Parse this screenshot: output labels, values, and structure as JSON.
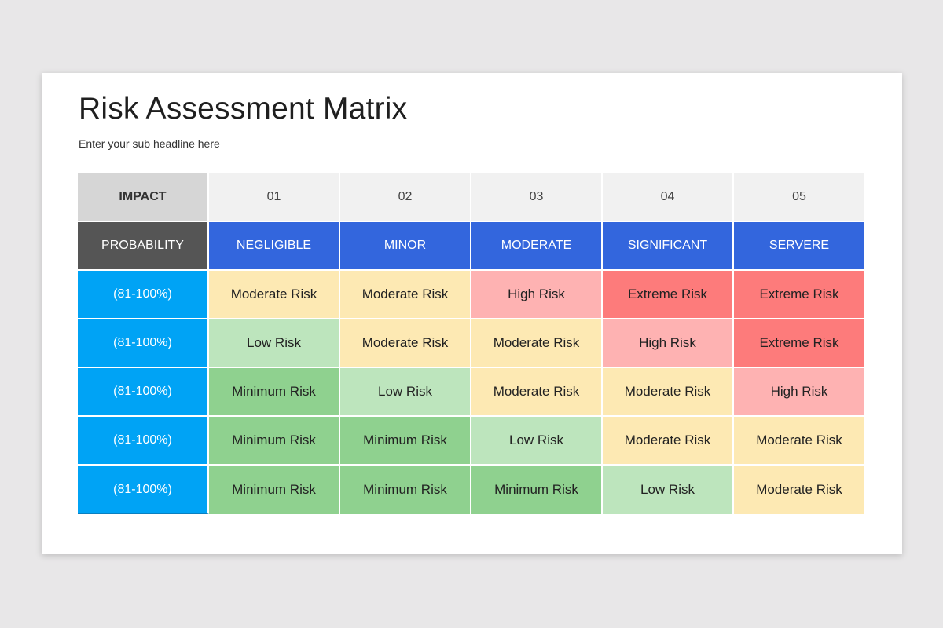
{
  "slide": {
    "title": "Risk Assessment Matrix",
    "subtitle": "Enter your sub headline here"
  },
  "matrix": {
    "impact_label": "IMPACT",
    "probability_label": "PROBABILITY",
    "levels": [
      "01",
      "02",
      "03",
      "04",
      "05"
    ],
    "impact_names": [
      "NEGLIGIBLE",
      "MINOR",
      "MODERATE",
      "SIGNIFICANT",
      "SERVERE"
    ],
    "colors": {
      "Minimum Risk": "#8fd18f",
      "Low Risk": "#bde5bd",
      "Moderate Risk": "#fde9b3",
      "High Risk": "#feb2b2",
      "Extreme Risk": "#fd7b7b"
    },
    "rows": [
      {
        "probability": "(81-100%)",
        "cells": [
          "Moderate Risk",
          "Moderate Risk",
          "High Risk",
          "Extreme Risk",
          "Extreme Risk"
        ]
      },
      {
        "probability": "(81-100%)",
        "cells": [
          "Low Risk",
          "Moderate Risk",
          "Moderate Risk",
          "High Risk",
          "Extreme Risk"
        ]
      },
      {
        "probability": "(81-100%)",
        "cells": [
          "Minimum Risk",
          "Low Risk",
          "Moderate Risk",
          "Moderate Risk",
          "High Risk"
        ]
      },
      {
        "probability": "(81-100%)",
        "cells": [
          "Minimum Risk",
          "Minimum Risk",
          "Low Risk",
          "Moderate Risk",
          "Moderate Risk"
        ]
      },
      {
        "probability": "(81-100%)",
        "cells": [
          "Minimum Risk",
          "Minimum Risk",
          "Minimum Risk",
          "Low Risk",
          "Moderate Risk"
        ]
      }
    ]
  }
}
